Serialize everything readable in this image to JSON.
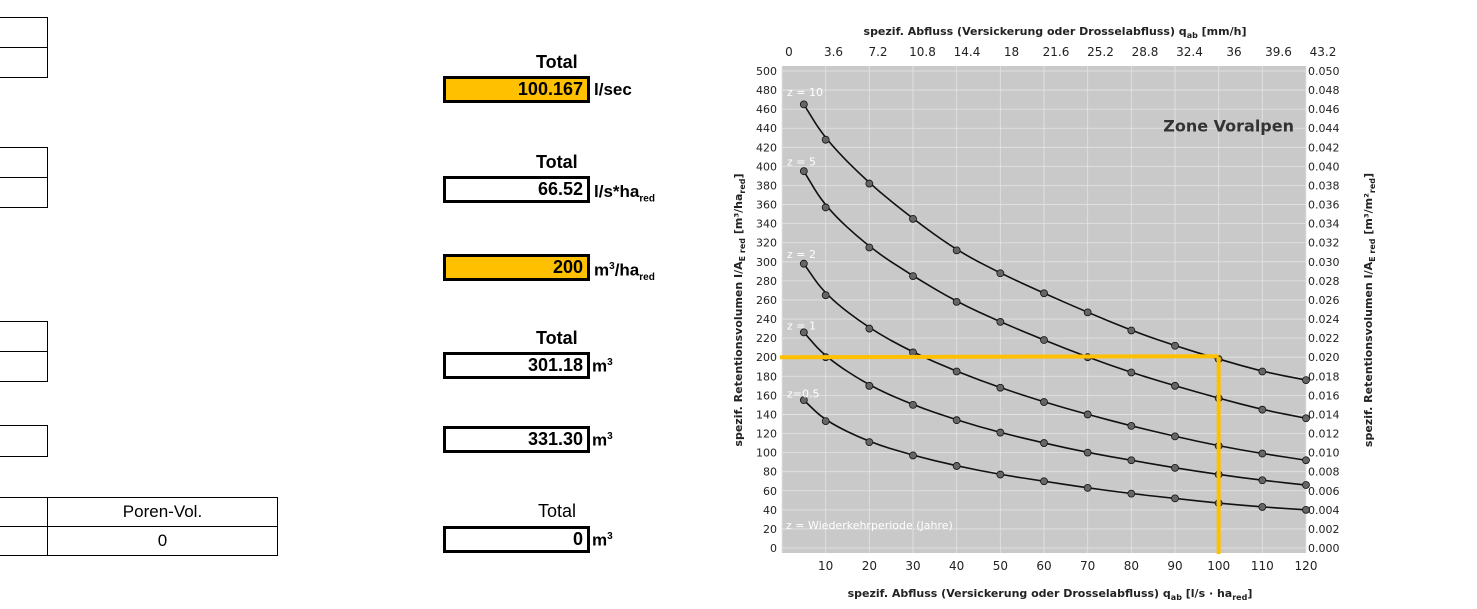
{
  "left": {
    "sections": [
      {
        "title": "Total",
        "value": "100.167",
        "unit_main": "l/sec",
        "unit_sub": "",
        "highlight": true
      },
      {
        "title": "Total",
        "value": "66.52",
        "unit_main": "l/s*ha",
        "unit_sub": "red",
        "highlight": false
      },
      {
        "title": "",
        "value": "200",
        "unit_main": "m",
        "unit_sup": "3",
        "unit_after": "/ha",
        "unit_sub": "red",
        "highlight": true
      },
      {
        "title": "Total",
        "value": "301.18",
        "unit_main": "m",
        "unit_sup": "3",
        "highlight": false
      },
      {
        "title": "",
        "value": "331.30",
        "unit_main": "m",
        "unit_sup": "3",
        "highlight": false
      },
      {
        "title": "Total",
        "value": "0",
        "unit_main": "m",
        "unit_sup": "3",
        "highlight": false
      }
    ],
    "poren": {
      "header": "Poren-Vol.",
      "value": "0"
    }
  },
  "chart_data": {
    "type": "line",
    "title": "Zone Voralpen",
    "x_top_label": "spezif. Abfluss (Versickerung oder Drosselabfluss) q",
    "x_top_label_sub": "ab",
    "x_top_label_unit": " [mm/h]",
    "x_bottom_label": "spezif. Abfluss (Versickerung oder Drosselabfluss) q",
    "x_bottom_label_sub": "ab",
    "x_bottom_label_unit": " [l/s · ha",
    "x_bottom_label_unit_sub": "red",
    "x_bottom_label_unit_end": "]",
    "y_left_label": "spezif. Retentionsvolumen I/A",
    "y_left_label_sub": "E red",
    "y_left_label_unit": " [m³/ha",
    "y_left_label_unit_sub": "red",
    "y_left_label_unit_end": "]",
    "y_right_label": "spezif. Retentionsvolumen I/A",
    "y_right_label_sub": "E red",
    "y_right_label_unit": " [m³/m²",
    "y_right_label_unit_sub": "red",
    "y_right_label_unit_end": "]",
    "xlim": [
      0,
      120
    ],
    "ylim": [
      0,
      500
    ],
    "x_ticks": [
      10,
      20,
      30,
      40,
      50,
      60,
      70,
      80,
      90,
      100,
      110,
      120
    ],
    "x_top_ticks": [
      "0",
      "3.6",
      "7.2",
      "10.8",
      "14.4",
      "18",
      "21.6",
      "25.2",
      "28.8",
      "32.4",
      "36",
      "39.6",
      "43.2"
    ],
    "y_ticks": [
      0,
      20,
      40,
      60,
      80,
      100,
      120,
      140,
      160,
      180,
      200,
      220,
      240,
      260,
      280,
      300,
      320,
      340,
      360,
      380,
      400,
      420,
      440,
      460,
      480,
      500
    ],
    "y_right_ticks": [
      "0.000",
      "0.002",
      "0.004",
      "0.006",
      "0.008",
      "0.010",
      "0.012",
      "0.014",
      "0.016",
      "0.018",
      "0.020",
      "0.022",
      "0.024",
      "0.026",
      "0.028",
      "0.030",
      "0.032",
      "0.034",
      "0.036",
      "0.038",
      "0.040",
      "0.042",
      "0.044",
      "0.046",
      "0.048",
      "0.050"
    ],
    "series": [
      {
        "name": "z = 10",
        "label_y": 478,
        "x": [
          5,
          10,
          20,
          30,
          40,
          50,
          60,
          70,
          80,
          90,
          100,
          110,
          120
        ],
        "y": [
          465,
          428,
          382,
          345,
          312,
          288,
          267,
          247,
          228,
          212,
          198,
          185,
          176
        ]
      },
      {
        "name": "z = 5",
        "label_y": 405,
        "x": [
          5,
          10,
          20,
          30,
          40,
          50,
          60,
          70,
          80,
          90,
          100,
          110,
          120
        ],
        "y": [
          395,
          357,
          315,
          285,
          258,
          237,
          218,
          200,
          184,
          170,
          157,
          145,
          136
        ]
      },
      {
        "name": "z = 2",
        "label_y": 308,
        "x": [
          5,
          10,
          20,
          30,
          40,
          50,
          60,
          70,
          80,
          90,
          100,
          110,
          120
        ],
        "y": [
          298,
          265,
          230,
          205,
          185,
          168,
          153,
          140,
          128,
          117,
          107,
          99,
          92
        ]
      },
      {
        "name": "z = 1",
        "label_y": 233,
        "x": [
          5,
          10,
          20,
          30,
          40,
          50,
          60,
          70,
          80,
          90,
          100,
          110,
          120
        ],
        "y": [
          226,
          200,
          170,
          150,
          134,
          121,
          110,
          100,
          92,
          84,
          77,
          71,
          66
        ]
      },
      {
        "name": "z=0.5",
        "label_y": 162,
        "x": [
          5,
          10,
          20,
          30,
          40,
          50,
          60,
          70,
          80,
          90,
          100,
          110,
          120
        ],
        "y": [
          155,
          133,
          111,
          97,
          86,
          77,
          70,
          63,
          57,
          52,
          47,
          43,
          40
        ]
      }
    ],
    "legend_note": "z = Wiederkehrperiode (Jahre)",
    "highlight": {
      "y": 200,
      "x": 100,
      "color": "#ffc000"
    },
    "grid": true
  }
}
